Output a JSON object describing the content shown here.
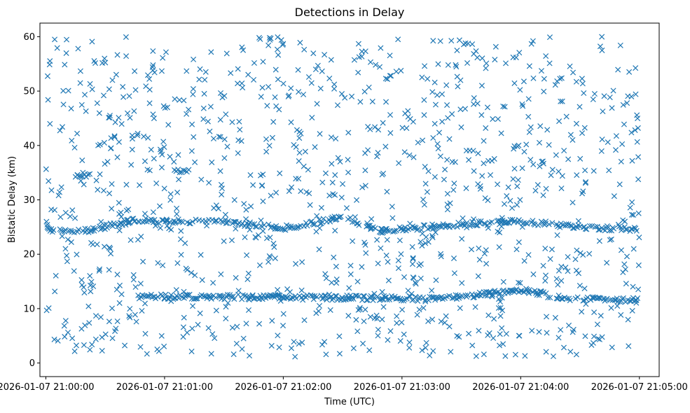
{
  "chart_data": {
    "type": "scatter",
    "title": "Detections in Delay",
    "xlabel": "Time (UTC)",
    "ylabel": "Bistatic Delay (km)",
    "marker": "x",
    "color": "#1f77b4",
    "xlim": [
      "2026-01-07 20:59:57",
      "2026-01-07 21:05:10"
    ],
    "ylim": [
      -2.5,
      62.5
    ],
    "x_ticks": [
      "2026-01-07 21:00:00",
      "2026-01-07 21:01:00",
      "2026-01-07 21:02:00",
      "2026-01-07 21:03:00",
      "2026-01-07 21:04:00",
      "2026-01-07 21:05:00"
    ],
    "y_ticks": [
      "0",
      "10",
      "20",
      "30",
      "40",
      "50",
      "60"
    ],
    "grid": false,
    "tracks": [
      {
        "description": "main track",
        "points": [
          [
            "21:00:00",
            24.5
          ],
          [
            "21:00:20",
            24.3
          ],
          [
            "21:00:45",
            26.2
          ],
          [
            "21:01:30",
            26.0
          ],
          [
            "21:02:00",
            24.8
          ],
          [
            "21:02:30",
            26.8
          ],
          [
            "21:02:50",
            24.3
          ],
          [
            "21:03:30",
            25.5
          ],
          [
            "21:04:00",
            26.0
          ],
          [
            "21:04:30",
            25.0
          ],
          [
            "21:05:00",
            24.5
          ]
        ]
      },
      {
        "description": "lower track",
        "points": [
          [
            "21:00:45",
            12.3
          ],
          [
            "21:01:00",
            12.2
          ],
          [
            "21:02:30",
            12.0
          ],
          [
            "21:03:20",
            11.8
          ],
          [
            "21:04:00",
            13.5
          ],
          [
            "21:04:20",
            12.0
          ],
          [
            "21:05:00",
            11.5
          ]
        ]
      },
      {
        "description": "upper cluster",
        "points": [
          [
            "21:00:15",
            34.5
          ],
          [
            "21:01:05",
            35.3
          ]
        ]
      }
    ],
    "clutter": {
      "count": 1100,
      "y_range": [
        1,
        60
      ],
      "x_range": [
        "21:00:00",
        "21:05:00"
      ]
    }
  }
}
